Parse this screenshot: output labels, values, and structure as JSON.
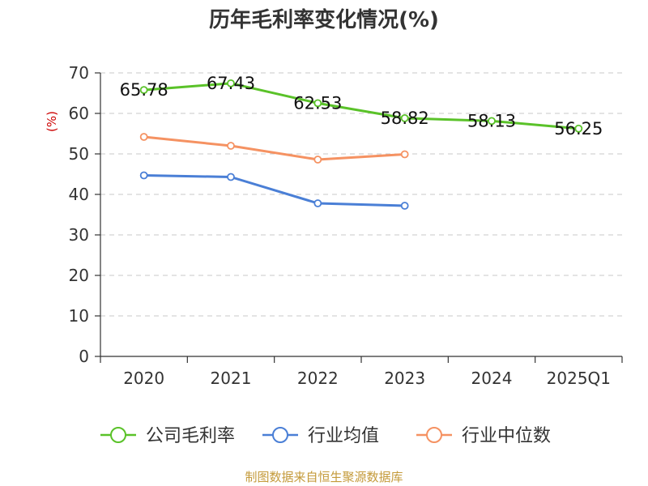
{
  "chart_data": {
    "type": "line",
    "title": "历年毛利率变化情况(%)",
    "ylabel": "(%)",
    "xlabel": "",
    "categories": [
      "2020",
      "2021",
      "2022",
      "2023",
      "2024",
      "2025Q1"
    ],
    "ylim": [
      0,
      70
    ],
    "yticks": [
      0,
      10,
      20,
      30,
      40,
      50,
      60,
      70
    ],
    "grid": true,
    "legend_position": "bottom",
    "series": [
      {
        "name": "公司毛利率",
        "color": "#5ac229",
        "values": [
          65.78,
          67.43,
          62.53,
          58.82,
          58.13,
          56.25
        ],
        "labels": [
          "65.78",
          "67.43",
          "62.53",
          "58.82",
          "58.13",
          "56.25"
        ]
      },
      {
        "name": "行业均值",
        "color": "#4a7fd6",
        "values": [
          44.7,
          44.3,
          37.8,
          37.2,
          null,
          null
        ]
      },
      {
        "name": "行业中位数",
        "color": "#f59262",
        "values": [
          54.2,
          52.0,
          48.6,
          49.9,
          null,
          null
        ]
      }
    ]
  },
  "footer": {
    "source": "制图数据来自恒生聚源数据库"
  }
}
